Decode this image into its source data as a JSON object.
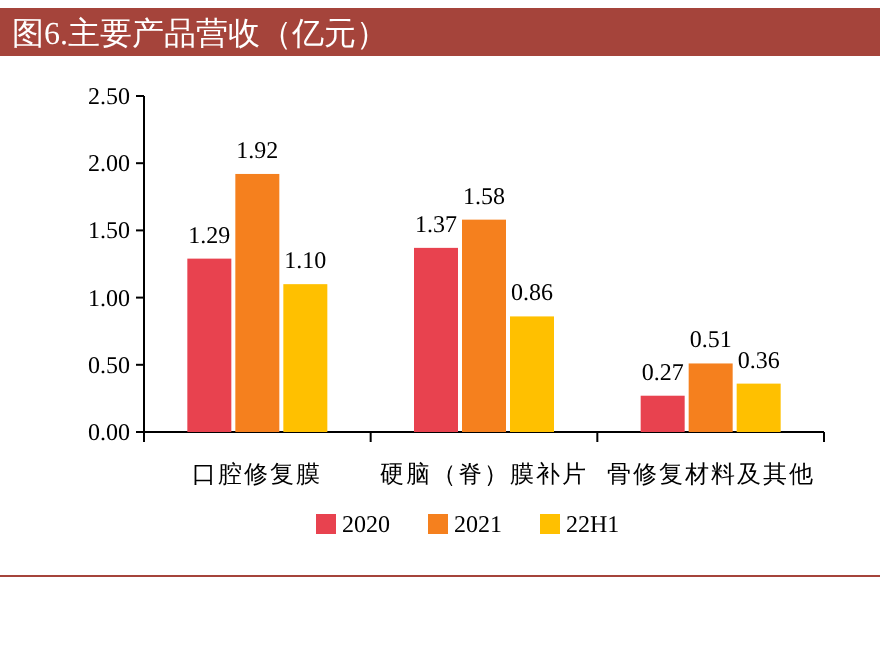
{
  "chart_data": {
    "type": "bar",
    "title": "图6.主要产品营收（亿元）",
    "categories": [
      "口腔修复膜",
      "硬脑（脊）膜补片",
      "骨修复材料及其他"
    ],
    "series": [
      {
        "name": "2020",
        "color": "#e8424f",
        "values": [
          1.29,
          1.37,
          0.27
        ],
        "value_labels": [
          "1.29",
          "1.37",
          "0.27"
        ]
      },
      {
        "name": "2021",
        "color": "#f5801e",
        "values": [
          1.92,
          1.58,
          0.51
        ],
        "value_labels": [
          "1.92",
          "1.58",
          "0.51"
        ]
      },
      {
        "name": "22H1",
        "color": "#ffc000",
        "values": [
          1.1,
          0.86,
          0.36
        ],
        "value_labels": [
          "1.10",
          "0.86",
          "0.36"
        ]
      }
    ],
    "ylim": [
      0,
      2.5
    ],
    "yticks": [
      {
        "value": 0,
        "label": "0.00"
      },
      {
        "value": 0.5,
        "label": "0.50"
      },
      {
        "value": 1,
        "label": "1.00"
      },
      {
        "value": 1.5,
        "label": "1.50"
      },
      {
        "value": 2,
        "label": "2.00"
      },
      {
        "value": 2.5,
        "label": "2.50"
      }
    ],
    "grid": false,
    "legend": "bottom"
  }
}
